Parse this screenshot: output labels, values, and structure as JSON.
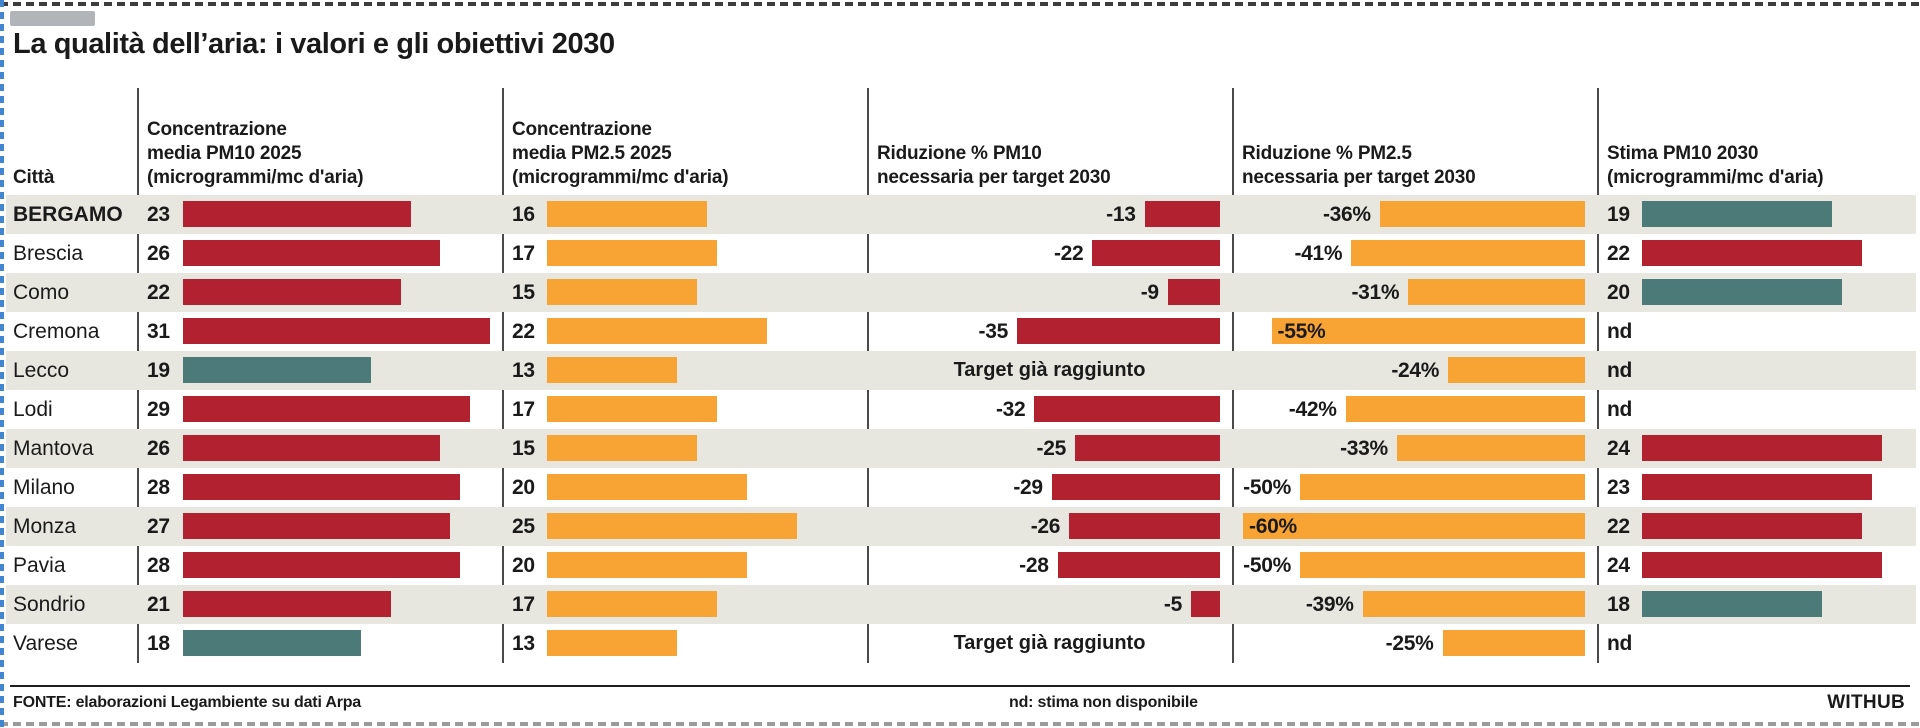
{
  "title": "La qualità dell’aria: i valori e gli obiettivi 2030",
  "header": {
    "city": "Città",
    "pm10_2025": "Concentrazione\nmedia PM10 2025\n(microgrammi/mc d'aria)",
    "pm25_2025": "Concentrazione\nmedia PM2.5 2025\n(microgrammi/mc d'aria)",
    "rid_pm10": "Riduzione % PM10\nnecessaria per target 2030",
    "rid_pm25": "Riduzione % PM2.5\nnecessaria per target 2030",
    "stima_2030": "Stima PM10 2030\n(microgrammi/mc d'aria)"
  },
  "colors": {
    "red": "#b2212f",
    "orange": "#f8a435",
    "teal": "#4b7a79",
    "stripe": "#e7e7df"
  },
  "rows": [
    {
      "city": "BERGAMO",
      "city_bold": true,
      "pm10": "23",
      "pm10_color": "red",
      "pm25": "16",
      "rid10": "-13",
      "rid25": "-36%",
      "stima": "19",
      "stima_color": "teal"
    },
    {
      "city": "Brescia",
      "pm10": "26",
      "pm10_color": "red",
      "pm25": "17",
      "rid10": "-22",
      "rid25": "-41%",
      "stima": "22",
      "stima_color": "red"
    },
    {
      "city": "Como",
      "pm10": "22",
      "pm10_color": "red",
      "pm25": "15",
      "rid10": "-9",
      "rid25": "-31%",
      "stima": "20",
      "stima_color": "teal"
    },
    {
      "city": "Cremona",
      "pm10": "31",
      "pm10_color": "red",
      "pm25": "22",
      "rid10": "-35",
      "rid25": "-55%",
      "stima": "nd"
    },
    {
      "city": "Lecco",
      "pm10": "19",
      "pm10_color": "teal",
      "pm25": "13",
      "rid10": "Target già raggiunto",
      "rid25": "-24%",
      "stima": "nd"
    },
    {
      "city": "Lodi",
      "pm10": "29",
      "pm10_color": "red",
      "pm25": "17",
      "rid10": "-32",
      "rid25": "-42%",
      "stima": "nd"
    },
    {
      "city": "Mantova",
      "pm10": "26",
      "pm10_color": "red",
      "pm25": "15",
      "rid10": "-25",
      "rid25": "-33%",
      "stima": "24",
      "stima_color": "red"
    },
    {
      "city": "Milano",
      "pm10": "28",
      "pm10_color": "red",
      "pm25": "20",
      "rid10": "-29",
      "rid25": "-50%",
      "stima": "23",
      "stima_color": "red"
    },
    {
      "city": "Monza",
      "pm10": "27",
      "pm10_color": "red",
      "pm25": "25",
      "rid10": "-26",
      "rid25": "-60%",
      "stima": "22",
      "stima_color": "red"
    },
    {
      "city": "Pavia",
      "pm10": "28",
      "pm10_color": "red",
      "pm25": "20",
      "rid10": "-28",
      "rid25": "-50%",
      "stima": "24",
      "stima_color": "red"
    },
    {
      "city": "Sondrio",
      "pm10": "21",
      "pm10_color": "red",
      "pm25": "17",
      "rid10": "-5",
      "rid25": "-39%",
      "stima": "18",
      "stima_color": "teal"
    },
    {
      "city": "Varese",
      "pm10": "18",
      "pm10_color": "teal",
      "pm25": "13",
      "rid10": "Target già raggiunto",
      "rid25": "-25%",
      "stima": "nd"
    }
  ],
  "footer": {
    "source": "FONTE: elaborazioni Legambiente su dati Arpa",
    "note": "nd: stima non disponibile",
    "brand": "WITHUB"
  },
  "chart_data": {
    "type": "bar",
    "title": "La qualità dell’aria: i valori e gli obiettivi 2030",
    "categories": [
      "BERGAMO",
      "Brescia",
      "Como",
      "Cremona",
      "Lecco",
      "Lodi",
      "Mantova",
      "Milano",
      "Monza",
      "Pavia",
      "Sondrio",
      "Varese"
    ],
    "series": [
      {
        "name": "Concentrazione media PM10 2025 (microgrammi/mc d'aria)",
        "values": [
          23,
          26,
          22,
          31,
          19,
          29,
          26,
          28,
          27,
          28,
          21,
          18
        ],
        "bar_colors": [
          "red",
          "red",
          "red",
          "red",
          "teal",
          "red",
          "red",
          "red",
          "red",
          "red",
          "red",
          "teal"
        ]
      },
      {
        "name": "Concentrazione media PM2.5 2025 (microgrammi/mc d'aria)",
        "values": [
          16,
          17,
          15,
          22,
          13,
          17,
          15,
          20,
          25,
          20,
          17,
          13
        ],
        "bar_colors": [
          "orange",
          "orange",
          "orange",
          "orange",
          "orange",
          "orange",
          "orange",
          "orange",
          "orange",
          "orange",
          "orange",
          "orange"
        ]
      },
      {
        "name": "Riduzione % PM10 necessaria per target 2030",
        "values": [
          -13,
          -22,
          -9,
          -35,
          null,
          -32,
          -25,
          -29,
          -26,
          -28,
          -5,
          null
        ],
        "labels": [
          "-13",
          "-22",
          "-9",
          "-35",
          "Target già raggiunto",
          "-32",
          "-25",
          "-29",
          "-26",
          "-28",
          "-5",
          "Target già raggiunto"
        ],
        "bar_colors": [
          "red",
          "red",
          "red",
          "red",
          null,
          "red",
          "red",
          "red",
          "red",
          "red",
          "red",
          null
        ]
      },
      {
        "name": "Riduzione % PM2.5 necessaria per target 2030",
        "values": [
          -36,
          -41,
          -31,
          -55,
          -24,
          -42,
          -33,
          -50,
          -60,
          -50,
          -39,
          -25
        ],
        "labels": [
          "-36%",
          "-41%",
          "-31%",
          "-55%",
          "-24%",
          "-42%",
          "-33%",
          "-50%",
          "-60%",
          "-50%",
          "-39%",
          "-25%"
        ],
        "bar_colors": [
          "orange",
          "orange",
          "orange",
          "orange",
          "orange",
          "orange",
          "orange",
          "orange",
          "orange",
          "orange",
          "orange",
          "orange"
        ]
      },
      {
        "name": "Stima PM10 2030 (microgrammi/mc d'aria)",
        "values": [
          19,
          22,
          20,
          null,
          null,
          null,
          24,
          23,
          22,
          24,
          18,
          null
        ],
        "labels": [
          "19",
          "22",
          "20",
          "nd",
          "nd",
          "nd",
          "24",
          "23",
          "22",
          "24",
          "18",
          "nd"
        ],
        "bar_colors": [
          "teal",
          "red",
          "teal",
          null,
          null,
          null,
          "red",
          "red",
          "red",
          "red",
          "teal",
          null
        ]
      }
    ],
    "legend_position": "none",
    "grid": false,
    "notes": "nd: stima non disponibile; bars in reduction columns are right-aligned (magnitude of required % reduction)"
  }
}
